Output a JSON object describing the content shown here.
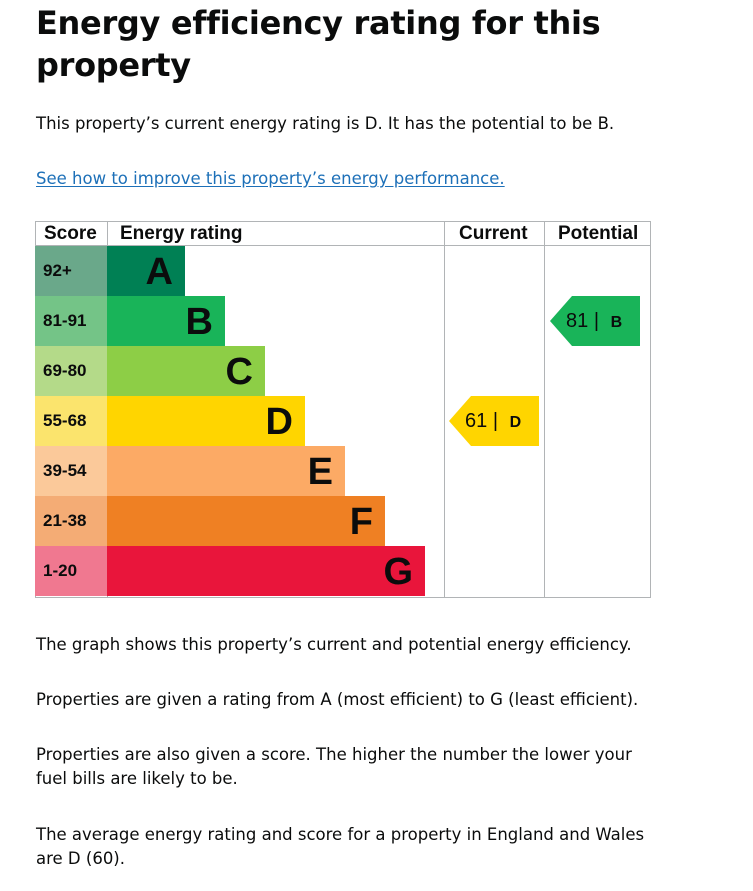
{
  "heading": "Energy efficiency rating for this property",
  "intro": "This property’s current energy rating is D. It has the potential to be B.",
  "improve_link": "See how to improve this property’s energy performance.",
  "table": {
    "headers": {
      "score": "Score",
      "rating": "Energy rating",
      "current": "Current",
      "potential": "Potential"
    }
  },
  "chart_data": {
    "type": "bar",
    "bands": [
      {
        "letter": "A",
        "score": "92+",
        "score_color": "#6aa88a",
        "bar_color": "#008054"
      },
      {
        "letter": "B",
        "score": "81-91",
        "score_color": "#74c487",
        "bar_color": "#19b459"
      },
      {
        "letter": "C",
        "score": "69-80",
        "score_color": "#b4da89",
        "bar_color": "#8dce46"
      },
      {
        "letter": "D",
        "score": "55-68",
        "score_color": "#fbe46d",
        "bar_color": "#ffd500"
      },
      {
        "letter": "E",
        "score": "39-54",
        "score_color": "#fbc99a",
        "bar_color": "#fcaa65"
      },
      {
        "letter": "F",
        "score": "21-38",
        "score_color": "#f4ac75",
        "bar_color": "#ef8023"
      },
      {
        "letter": "G",
        "score": "1-20",
        "score_color": "#f07890",
        "bar_color": "#e9153b"
      }
    ],
    "current": {
      "value": 61,
      "letter": "D",
      "separator": "|",
      "color": "#ffd500"
    },
    "potential": {
      "value": 81,
      "letter": "B",
      "separator": "|",
      "color": "#19b459"
    }
  },
  "paragraphs": {
    "p1": "The graph shows this property’s current and potential energy efficiency.",
    "p2": "Properties are given a rating from A (most efficient) to G (least efficient).",
    "p3": "Properties are also given a score. The higher the number the lower your fuel bills are likely to be.",
    "p4": "The average energy rating and score for a property in England and Wales are D (60)."
  }
}
